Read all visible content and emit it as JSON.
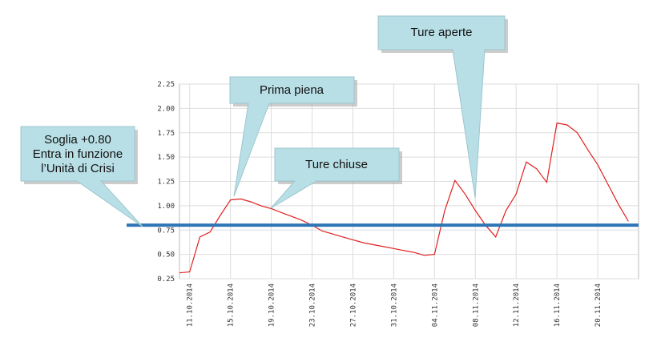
{
  "chart_data": {
    "type": "line",
    "x": [
      "10.10.2014",
      "11.10.2014",
      "12.10.2014",
      "13.10.2014",
      "14.10.2014",
      "15.10.2014",
      "16.10.2014",
      "17.10.2014",
      "18.10.2014",
      "19.10.2014",
      "20.10.2014",
      "21.10.2014",
      "22.10.2014",
      "23.10.2014",
      "24.10.2014",
      "25.10.2014",
      "26.10.2014",
      "27.10.2014",
      "28.10.2014",
      "29.10.2014",
      "30.10.2014",
      "31.10.2014",
      "01.11.2014",
      "02.11.2014",
      "03.11.2014",
      "04.11.2014",
      "05.11.2014",
      "06.11.2014",
      "07.11.2014",
      "08.11.2014",
      "09.11.2014",
      "10.11.2014",
      "11.11.2014",
      "12.11.2014",
      "13.11.2014",
      "14.11.2014",
      "15.11.2014",
      "16.11.2014",
      "17.11.2014",
      "18.11.2014",
      "19.11.2014",
      "20.11.2014",
      "21.11.2014",
      "22.11.2014",
      "23.11.2014"
    ],
    "values": [
      0.31,
      0.32,
      0.68,
      0.73,
      0.9,
      1.06,
      1.07,
      1.04,
      1.0,
      0.97,
      0.93,
      0.89,
      0.85,
      0.8,
      0.74,
      0.71,
      0.68,
      0.65,
      0.62,
      0.6,
      0.58,
      0.56,
      0.54,
      0.52,
      0.49,
      0.5,
      0.95,
      1.26,
      1.12,
      0.95,
      0.8,
      0.68,
      0.95,
      1.12,
      1.45,
      1.38,
      1.24,
      1.85,
      1.83,
      1.75,
      1.58,
      1.42,
      1.22,
      1.02,
      0.84
    ],
    "color": "#e02020",
    "xlim": [
      "10.10.2014",
      "24.11.2014"
    ],
    "xticks": [
      "11.10.2014",
      "15.10.2014",
      "19.10.2014",
      "23.10.2014",
      "27.10.2014",
      "31.10.2014",
      "04.11.2014",
      "08.11.2014",
      "12.11.2014",
      "16.11.2014",
      "20.11.2014"
    ],
    "ylim": [
      0.25,
      2.25
    ],
    "yticks": [
      0.25,
      {
        "value": 0.5,
        "label": "0.50"
      },
      0.75,
      {
        "value": 1,
        "label": "1.00"
      },
      1.25,
      {
        "value": 1.5,
        "label": "1.50"
      },
      1.75,
      {
        "value": 2,
        "label": "2.00"
      },
      2.25
    ],
    "grid": true,
    "threshold": {
      "value": 0.8,
      "color": "#2e75b6"
    },
    "annotations": [
      {
        "lines": [
          "Soglia +0.80",
          "Entra in funzione",
          "l’Unità di Crisi"
        ]
      },
      {
        "lines": [
          "Prima piena"
        ]
      },
      {
        "lines": [
          "Ture chiuse"
        ]
      },
      {
        "lines": [
          "Ture aperte"
        ]
      }
    ]
  }
}
